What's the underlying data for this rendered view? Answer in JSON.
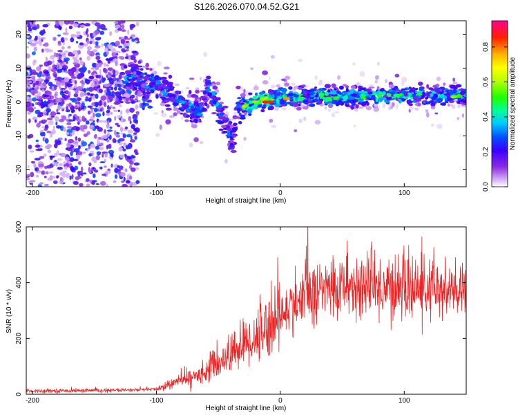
{
  "title": "S126.2026.070.04.52.G21",
  "chart_data": [
    {
      "type": "heatmap",
      "panel": "spectrogram",
      "xlabel": "Height of straight line (km)",
      "ylabel": "Frequency (Hz)",
      "xlim": [
        -205,
        150
      ],
      "ylim": [
        -25,
        24
      ],
      "xticks": [
        -200,
        -100,
        0,
        100
      ],
      "yticks": [
        20,
        10,
        0,
        -10,
        -20
      ],
      "colorbar": {
        "label": "Normalized spectral amplitude",
        "range": [
          0.0,
          0.95
        ],
        "ticks": [
          0.0,
          0.2,
          0.4,
          0.6,
          0.8
        ],
        "tick_labels": [
          "0.0",
          "0.2",
          "0.4",
          "0.6",
          "0.8"
        ]
      },
      "ridge": {
        "description_points": [
          {
            "x": -120,
            "y": 7
          },
          {
            "x": -95,
            "y": 4
          },
          {
            "x": -80,
            "y": 0
          },
          {
            "x": -65,
            "y": -3
          },
          {
            "x": -58,
            "y": 5
          },
          {
            "x": -45,
            "y": -6
          },
          {
            "x": -38,
            "y": -11
          },
          {
            "x": -35,
            "y": -2
          },
          {
            "x": -20,
            "y": 0
          },
          {
            "x": 0,
            "y": 1.5
          },
          {
            "x": 50,
            "y": 1.5
          },
          {
            "x": 100,
            "y": 2
          },
          {
            "x": 150,
            "y": 2
          }
        ]
      }
    },
    {
      "type": "line",
      "panel": "snr",
      "xlabel": "Height of straight line (km)",
      "ylabel": "SNR (10 * v/v)",
      "xlim": [
        -205,
        150
      ],
      "ylim": [
        0,
        600
      ],
      "xticks": [
        -200,
        -100,
        0,
        100
      ],
      "yticks": [
        0,
        200,
        400,
        600
      ],
      "color": "#ee2222",
      "envelope": [
        {
          "x": -205,
          "y": 12
        },
        {
          "x": -130,
          "y": 14
        },
        {
          "x": -100,
          "y": 18
        },
        {
          "x": -80,
          "y": 50
        },
        {
          "x": -70,
          "y": 60
        },
        {
          "x": -50,
          "y": 110
        },
        {
          "x": -30,
          "y": 180
        },
        {
          "x": -20,
          "y": 200
        },
        {
          "x": -10,
          "y": 250
        },
        {
          "x": 0,
          "y": 280
        },
        {
          "x": 10,
          "y": 320
        },
        {
          "x": 20,
          "y": 350
        },
        {
          "x": 40,
          "y": 380
        },
        {
          "x": 60,
          "y": 385
        },
        {
          "x": 100,
          "y": 380
        },
        {
          "x": 150,
          "y": 360
        }
      ]
    }
  ]
}
